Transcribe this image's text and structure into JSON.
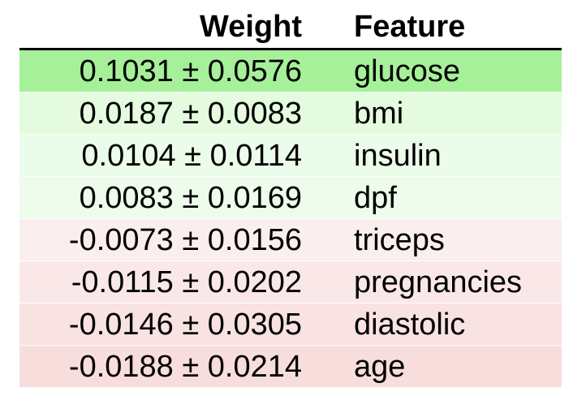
{
  "table": {
    "headers": {
      "weight": "Weight",
      "feature": "Feature"
    },
    "rows": [
      {
        "weight": "0.1031 ± 0.0576",
        "feature": "glucose",
        "color": "#a6f09a"
      },
      {
        "weight": "0.0187 ± 0.0083",
        "feature": "bmi",
        "color": "#e4fbe0"
      },
      {
        "weight": "0.0104 ± 0.0114",
        "feature": "insulin",
        "color": "#ecfcea"
      },
      {
        "weight": "0.0083 ± 0.0169",
        "feature": "dpf",
        "color": "#eefcec"
      },
      {
        "weight": "-0.0073 ± 0.0156",
        "feature": "triceps",
        "color": "#fbeeee"
      },
      {
        "weight": "-0.0115 ± 0.0202",
        "feature": "pregnancies",
        "color": "#fae8e8"
      },
      {
        "weight": "-0.0146 ± 0.0305",
        "feature": "diastolic",
        "color": "#f9e2e2"
      },
      {
        "weight": "-0.0188 ± 0.0214",
        "feature": "age",
        "color": "#f8dddd"
      }
    ]
  }
}
